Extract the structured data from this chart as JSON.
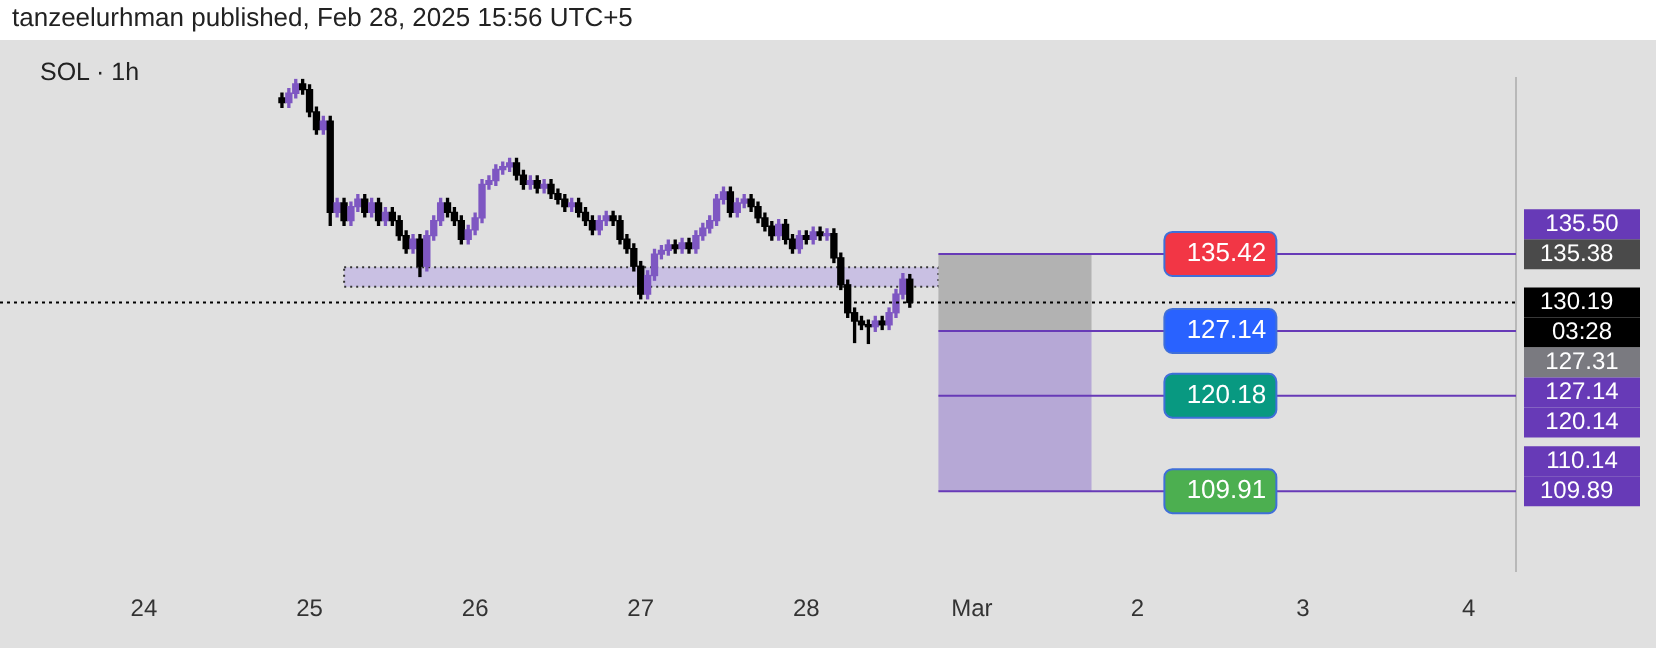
{
  "chart_data": {
    "type": "candlestick",
    "title": "SOL · 1h",
    "annotations": [
      "tanzeelurhman published, Feb 28, 2025 15:56 UTC+5",
      "135.50",
      "03:28",
      "127.31",
      "127.14",
      "120.14",
      "110.14"
    ],
    "x": [
      "2025-02-24T20:00",
      "2025-02-24T21:00",
      "2025-02-24T22:00",
      "2025-02-24T23:00",
      "2025-02-25T00:00",
      "2025-02-25T01:00",
      "2025-02-25T02:00",
      "2025-02-25T03:00",
      "2025-02-25T04:00",
      "2025-02-25T05:00",
      "2025-02-25T06:00",
      "2025-02-25T07:00",
      "2025-02-25T08:00",
      "2025-02-25T09:00",
      "2025-02-25T10:00",
      "2025-02-25T11:00",
      "2025-02-25T12:00",
      "2025-02-25T13:00",
      "2025-02-25T14:00",
      "2025-02-25T15:00",
      "2025-02-25T16:00",
      "2025-02-25T17:00",
      "2025-02-25T18:00",
      "2025-02-25T19:00",
      "2025-02-25T20:00",
      "2025-02-25T21:00",
      "2025-02-25T22:00",
      "2025-02-25T23:00",
      "2025-02-26T00:00",
      "2025-02-26T01:00",
      "2025-02-26T02:00",
      "2025-02-26T03:00",
      "2025-02-26T04:00",
      "2025-02-26T05:00",
      "2025-02-26T06:00",
      "2025-02-26T07:00",
      "2025-02-26T08:00",
      "2025-02-26T09:00",
      "2025-02-26T10:00",
      "2025-02-26T11:00",
      "2025-02-26T12:00",
      "2025-02-26T13:00",
      "2025-02-26T14:00",
      "2025-02-26T15:00",
      "2025-02-26T16:00",
      "2025-02-26T17:00",
      "2025-02-26T18:00",
      "2025-02-26T19:00",
      "2025-02-26T20:00",
      "2025-02-26T21:00",
      "2025-02-26T22:00",
      "2025-02-26T23:00",
      "2025-02-27T00:00",
      "2025-02-27T01:00",
      "2025-02-27T02:00",
      "2025-02-27T03:00",
      "2025-02-27T04:00",
      "2025-02-27T05:00",
      "2025-02-27T06:00",
      "2025-02-27T07:00",
      "2025-02-27T08:00",
      "2025-02-27T09:00",
      "2025-02-27T10:00",
      "2025-02-27T11:00",
      "2025-02-27T12:00",
      "2025-02-27T13:00",
      "2025-02-27T14:00",
      "2025-02-27T15:00",
      "2025-02-27T16:00",
      "2025-02-27T17:00",
      "2025-02-27T18:00",
      "2025-02-27T19:00",
      "2025-02-27T20:00",
      "2025-02-27T21:00",
      "2025-02-27T22:00",
      "2025-02-27T23:00",
      "2025-02-28T00:00",
      "2025-02-28T01:00",
      "2025-02-28T02:00",
      "2025-02-28T03:00",
      "2025-02-28T04:00",
      "2025-02-28T05:00",
      "2025-02-28T06:00",
      "2025-02-28T07:00",
      "2025-02-28T08:00",
      "2025-02-28T09:00",
      "2025-02-28T10:00",
      "2025-02-28T11:00",
      "2025-02-28T12:00",
      "2025-02-28T13:00",
      "2025-02-28T14:00",
      "2025-02-28T15:00"
    ],
    "ohlc": [
      [
        152.2,
        152.7,
        151.2,
        151.7
      ],
      [
        151.7,
        153.2,
        151.2,
        152.7
      ],
      [
        152.7,
        154.2,
        152.2,
        153.7
      ],
      [
        153.7,
        154.2,
        152.6,
        153.1
      ],
      [
        153.1,
        153.6,
        150.2,
        150.7
      ],
      [
        150.7,
        151.2,
        148.3,
        148.8
      ],
      [
        148.8,
        150.2,
        148.3,
        149.7
      ],
      [
        149.7,
        150.2,
        138.5,
        139.9
      ],
      [
        139.9,
        141.4,
        139.4,
        140.9
      ],
      [
        140.9,
        141.4,
        138.5,
        139.0
      ],
      [
        139.0,
        141.0,
        138.5,
        140.5
      ],
      [
        140.5,
        141.8,
        140.0,
        141.3
      ],
      [
        141.3,
        141.8,
        139.4,
        139.9
      ],
      [
        139.9,
        141.4,
        139.4,
        140.9
      ],
      [
        140.9,
        141.4,
        138.5,
        139.0
      ],
      [
        139.0,
        140.4,
        138.5,
        139.9
      ],
      [
        139.9,
        140.4,
        138.5,
        139.0
      ],
      [
        139.0,
        139.5,
        136.9,
        137.4
      ],
      [
        137.4,
        137.9,
        135.5,
        136.0
      ],
      [
        136.0,
        137.5,
        135.5,
        137.0
      ],
      [
        137.0,
        137.5,
        133.0,
        134.1
      ],
      [
        134.1,
        137.9,
        133.6,
        137.4
      ],
      [
        137.4,
        139.5,
        136.9,
        139.0
      ],
      [
        139.0,
        141.4,
        138.5,
        140.9
      ],
      [
        140.9,
        141.4,
        139.4,
        139.9
      ],
      [
        139.9,
        140.4,
        138.5,
        139.0
      ],
      [
        139.0,
        139.5,
        136.5,
        137.0
      ],
      [
        137.0,
        138.5,
        136.5,
        138.0
      ],
      [
        138.0,
        139.8,
        137.5,
        139.3
      ],
      [
        139.3,
        143.4,
        138.8,
        142.9
      ],
      [
        142.9,
        143.8,
        142.4,
        143.3
      ],
      [
        143.3,
        145.0,
        142.8,
        144.5
      ],
      [
        144.5,
        145.3,
        144.0,
        144.8
      ],
      [
        144.8,
        145.7,
        144.3,
        145.2
      ],
      [
        145.2,
        145.7,
        143.4,
        143.9
      ],
      [
        143.9,
        144.4,
        142.4,
        142.9
      ],
      [
        142.9,
        143.8,
        142.4,
        143.3
      ],
      [
        143.3,
        143.8,
        142.0,
        142.5
      ],
      [
        142.5,
        143.4,
        142.0,
        142.9
      ],
      [
        142.9,
        143.4,
        141.4,
        141.9
      ],
      [
        141.9,
        142.4,
        140.8,
        141.3
      ],
      [
        141.3,
        141.8,
        140.0,
        140.5
      ],
      [
        140.5,
        141.4,
        140.0,
        140.9
      ],
      [
        140.9,
        141.4,
        139.4,
        139.9
      ],
      [
        139.9,
        140.4,
        138.5,
        139.0
      ],
      [
        139.0,
        139.5,
        137.5,
        138.0
      ],
      [
        138.0,
        139.5,
        137.5,
        139.0
      ],
      [
        139.0,
        140.0,
        138.5,
        139.5
      ],
      [
        139.5,
        140.0,
        138.5,
        139.0
      ],
      [
        139.0,
        139.5,
        136.5,
        137.0
      ],
      [
        137.0,
        137.5,
        135.5,
        136.0
      ],
      [
        136.0,
        136.5,
        133.6,
        134.1
      ],
      [
        134.1,
        134.6,
        130.6,
        131.1
      ],
      [
        131.1,
        133.6,
        130.6,
        133.1
      ],
      [
        133.1,
        135.9,
        132.6,
        135.4
      ],
      [
        135.4,
        136.3,
        134.9,
        135.8
      ],
      [
        135.8,
        136.9,
        135.3,
        136.4
      ],
      [
        136.4,
        136.9,
        135.5,
        136.0
      ],
      [
        136.0,
        137.1,
        135.5,
        136.6
      ],
      [
        136.6,
        137.1,
        135.5,
        136.0
      ],
      [
        136.0,
        137.9,
        135.5,
        137.4
      ],
      [
        137.4,
        138.7,
        136.9,
        138.2
      ],
      [
        138.2,
        139.5,
        137.7,
        139.0
      ],
      [
        139.0,
        141.8,
        138.5,
        141.3
      ],
      [
        141.3,
        142.6,
        140.8,
        142.1
      ],
      [
        142.1,
        142.6,
        139.4,
        139.9
      ],
      [
        139.9,
        141.4,
        139.4,
        140.9
      ],
      [
        140.9,
        141.8,
        140.4,
        141.3
      ],
      [
        141.3,
        141.8,
        140.0,
        140.5
      ],
      [
        140.5,
        141.0,
        138.8,
        139.3
      ],
      [
        139.3,
        139.8,
        137.9,
        138.4
      ],
      [
        138.4,
        138.9,
        136.9,
        137.4
      ],
      [
        137.4,
        139.1,
        136.9,
        138.6
      ],
      [
        138.6,
        139.1,
        136.5,
        137.0
      ],
      [
        137.0,
        137.5,
        135.5,
        136.0
      ],
      [
        136.0,
        137.9,
        135.5,
        137.4
      ],
      [
        137.4,
        137.9,
        136.5,
        137.0
      ],
      [
        137.0,
        138.3,
        136.5,
        137.8
      ],
      [
        137.8,
        138.3,
        136.9,
        137.4
      ],
      [
        137.4,
        138.1,
        136.9,
        137.6
      ],
      [
        137.6,
        138.1,
        134.5,
        135.0
      ],
      [
        135.0,
        135.5,
        131.6,
        132.1
      ],
      [
        132.1,
        132.6,
        128.6,
        129.1
      ],
      [
        129.1,
        129.6,
        125.9,
        128.2
      ],
      [
        128.2,
        128.7,
        127.3,
        127.8
      ],
      [
        127.8,
        128.3,
        125.8,
        127.6
      ],
      [
        127.6,
        128.7,
        127.1,
        128.2
      ],
      [
        128.2,
        128.7,
        127.3,
        127.8
      ],
      [
        127.8,
        129.6,
        127.3,
        129.1
      ],
      [
        129.1,
        131.6,
        128.6,
        131.1
      ],
      [
        131.1,
        133.3,
        130.6,
        132.7
      ],
      [
        132.7,
        133.2,
        129.7,
        130.2
      ]
    ],
    "colors": [
      "#000000",
      "#7e57c2",
      "#7e57c2",
      "#000000",
      "#000000",
      "#000000",
      "#7e57c2",
      "#000000",
      "#7e57c2",
      "#000000",
      "#7e57c2",
      "#7e57c2",
      "#000000",
      "#7e57c2",
      "#000000",
      "#7e57c2",
      "#000000",
      "#000000",
      "#000000",
      "#7e57c2",
      "#000000",
      "#7e57c2",
      "#7e57c2",
      "#7e57c2",
      "#000000",
      "#000000",
      "#000000",
      "#7e57c2",
      "#7e57c2",
      "#7e57c2",
      "#7e57c2",
      "#7e57c2",
      "#7e57c2",
      "#7e57c2",
      "#000000",
      "#000000",
      "#7e57c2",
      "#000000",
      "#7e57c2",
      "#000000",
      "#000000",
      "#000000",
      "#7e57c2",
      "#000000",
      "#000000",
      "#000000",
      "#7e57c2",
      "#7e57c2",
      "#000000",
      "#000000",
      "#000000",
      "#000000",
      "#000000",
      "#7e57c2",
      "#7e57c2",
      "#7e57c2",
      "#7e57c2",
      "#000000",
      "#7e57c2",
      "#000000",
      "#7e57c2",
      "#7e57c2",
      "#7e57c2",
      "#7e57c2",
      "#7e57c2",
      "#000000",
      "#7e57c2",
      "#7e57c2",
      "#000000",
      "#000000",
      "#000000",
      "#000000",
      "#7e57c2",
      "#000000",
      "#000000",
      "#7e57c2",
      "#000000",
      "#7e57c2",
      "#000000",
      "#7e57c2",
      "#000000",
      "#000000",
      "#000000",
      "#000000",
      "#000000",
      "#000000",
      "#7e57c2",
      "#000000",
      "#7e57c2",
      "#7e57c2",
      "#7e57c2",
      "#000000"
    ],
    "xlim": [
      "2025-02-23T03:08",
      "2025-03-04T06:52"
    ],
    "xticks": [
      {
        "value": "2025-02-24",
        "label": "24"
      },
      {
        "value": "2025-02-25",
        "label": "25"
      },
      {
        "value": "2025-02-26",
        "label": "26"
      },
      {
        "value": "2025-02-27",
        "label": "27"
      },
      {
        "value": "2025-02-28",
        "label": "28"
      },
      {
        "value": "2025-03-01",
        "label": "Mar"
      },
      {
        "value": "2025-03-02",
        "label": "2"
      },
      {
        "value": "2025-03-03",
        "label": "3"
      },
      {
        "value": "2025-03-04",
        "label": "4"
      }
    ],
    "ylim": [
      101.3,
      154.3
    ],
    "yticks": [
      109.89,
      130.19,
      135.38
    ],
    "ref_lines": [
      {
        "axis": "y",
        "value": 135.42,
        "label": "135.42",
        "color": "#673ab7"
      },
      {
        "axis": "y",
        "value": 127.14,
        "label": "127.14",
        "color": "#673ab7"
      },
      {
        "axis": "y",
        "value": 120.18,
        "label": "120.18",
        "color": "#673ab7"
      },
      {
        "axis": "y",
        "value": 109.91,
        "label": "109.91",
        "color": "#673ab7"
      },
      {
        "axis": "y",
        "value": 130.19,
        "label": null,
        "color": "#000000",
        "line_style": "dotted"
      }
    ],
    "bands": [
      {
        "axis": "y",
        "from": 131.9,
        "to": 134.0,
        "color": "#c9c0e3"
      },
      {
        "axis": "y",
        "from": 127.14,
        "to": 135.42,
        "color": "#b2b2b2"
      },
      {
        "axis": "y",
        "from": 109.91,
        "to": 127.14,
        "color": "#b6a8d6"
      }
    ]
  }
}
